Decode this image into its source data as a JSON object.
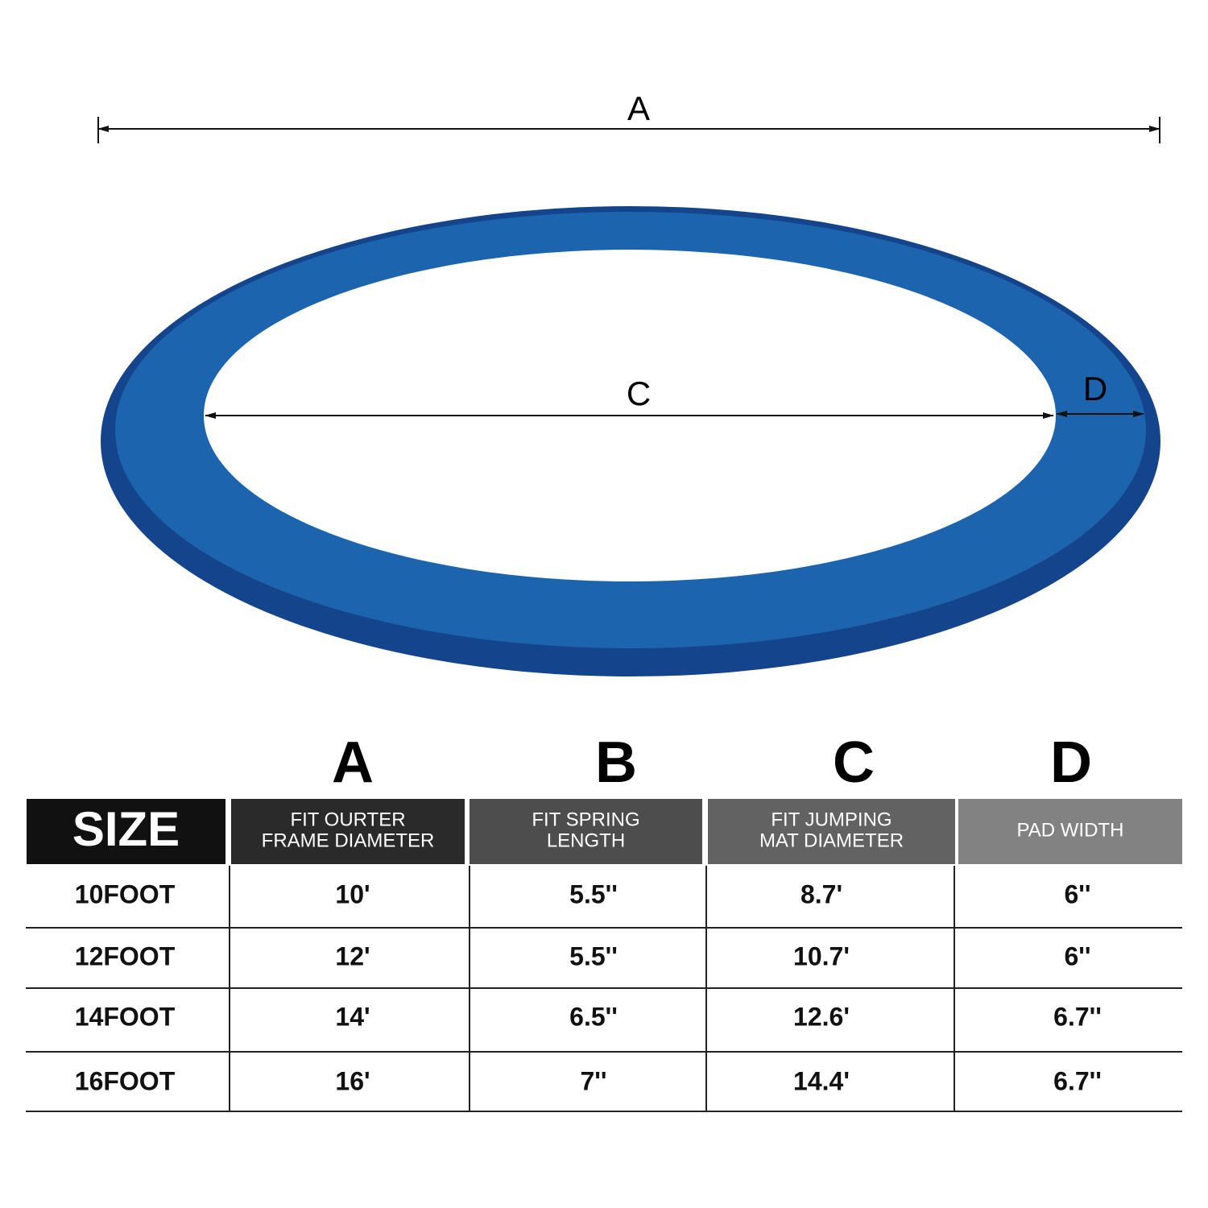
{
  "diagram": {
    "labels": {
      "a": "A",
      "c": "C",
      "d": "D"
    }
  },
  "table": {
    "letters": [
      "A",
      "B",
      "C",
      "D"
    ],
    "headers": [
      [
        "SIZE"
      ],
      [
        "FIT OURTER",
        "FRAME DIAMETER"
      ],
      [
        "FIT SPRING",
        "LENGTH"
      ],
      [
        "FIT JUMPING",
        "MAT DIAMETER"
      ],
      [
        "PAD WIDTH"
      ]
    ],
    "rows": [
      [
        "10FOOT",
        "10'",
        "5.5''",
        "8.7'",
        "6''"
      ],
      [
        "12FOOT",
        "12'",
        "5.5''",
        "10.7'",
        "6''"
      ],
      [
        "14FOOT",
        "14'",
        "6.5''",
        "12.6'",
        "6.7''"
      ],
      [
        "16FOOT",
        "16'",
        "7''",
        "14.4'",
        "6.7''"
      ]
    ]
  }
}
